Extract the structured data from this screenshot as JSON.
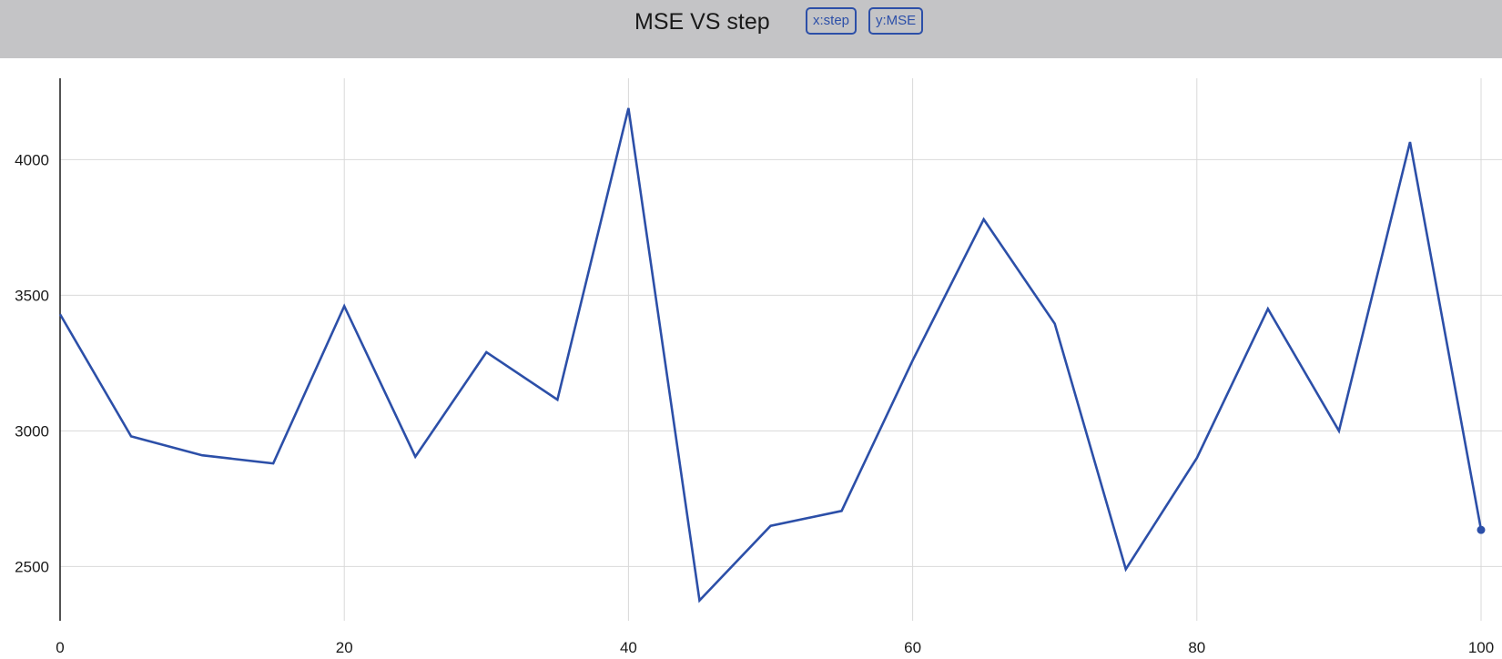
{
  "header": {
    "title": "MSE VS step",
    "x_badge": "x:step",
    "y_badge": "y:MSE"
  },
  "colors": {
    "header_bg": "#c4c4c6",
    "line": "#2c4fa8",
    "grid": "#d9d9d9",
    "axis": "#1a1a1a"
  },
  "chart_data": {
    "type": "line",
    "title": "MSE VS step",
    "xlabel": "step",
    "ylabel": "MSE",
    "xlim": [
      0,
      100
    ],
    "ylim": [
      2300,
      4300
    ],
    "x_ticks": [
      0,
      20,
      40,
      60,
      80,
      100
    ],
    "y_ticks": [
      2500,
      3000,
      3500,
      4000
    ],
    "grid": true,
    "series": [
      {
        "name": "MSE",
        "x": [
          0,
          5,
          10,
          15,
          20,
          25,
          30,
          35,
          40,
          45,
          50,
          55,
          60,
          65,
          70,
          75,
          80,
          85,
          90,
          95,
          100
        ],
        "values": [
          3430,
          2980,
          2910,
          2880,
          3460,
          2905,
          3290,
          3115,
          4190,
          2375,
          2650,
          2705,
          3260,
          3780,
          3395,
          2490,
          2900,
          3450,
          3000,
          4065,
          2635
        ]
      }
    ]
  }
}
